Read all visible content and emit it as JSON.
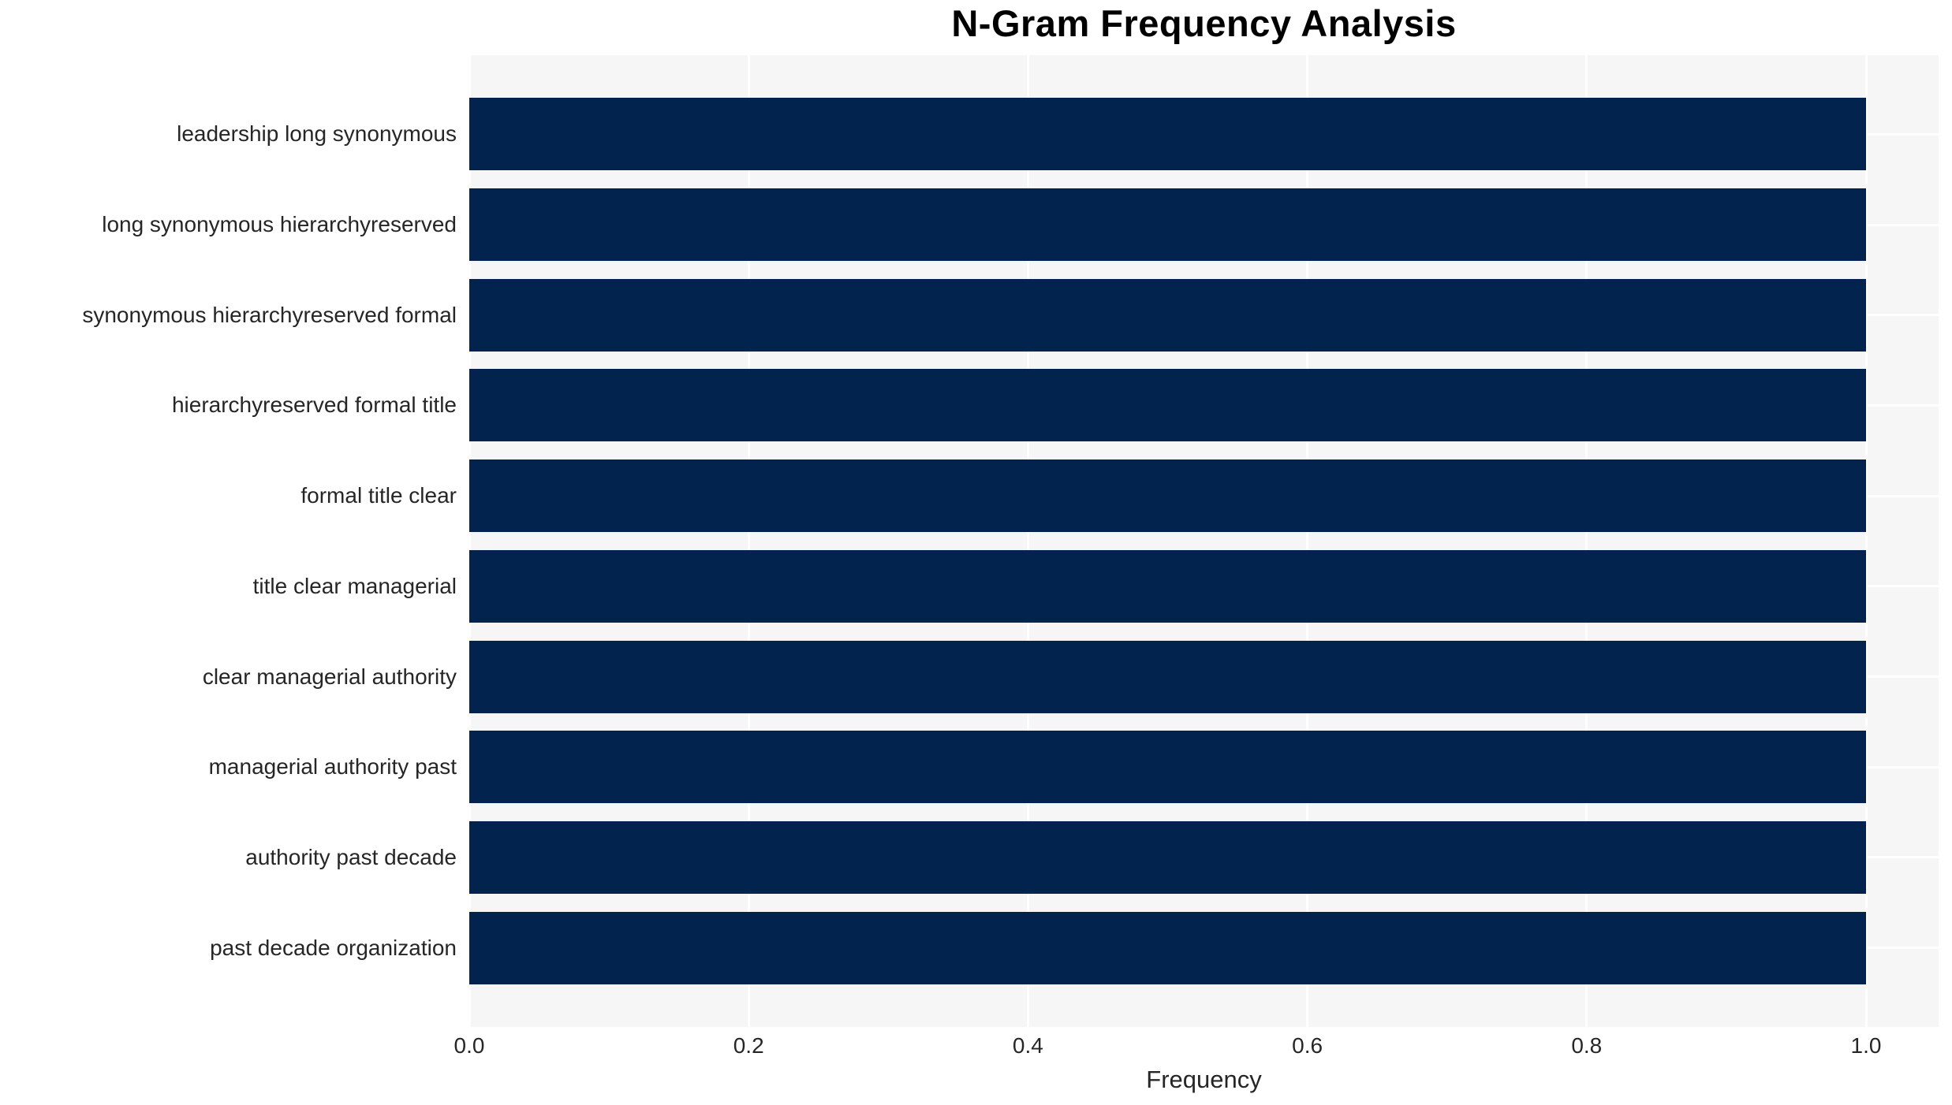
{
  "chart_data": {
    "type": "bar",
    "orientation": "horizontal",
    "title": "N-Gram Frequency Analysis",
    "xlabel": "Frequency",
    "ylabel": "",
    "categories": [
      "leadership long synonymous",
      "long synonymous hierarchyreserved",
      "synonymous hierarchyreserved formal",
      "hierarchyreserved formal title",
      "formal title clear",
      "title clear managerial",
      "clear managerial authority",
      "managerial authority past",
      "authority past decade",
      "past decade organization"
    ],
    "values": [
      1.0,
      1.0,
      1.0,
      1.0,
      1.0,
      1.0,
      1.0,
      1.0,
      1.0,
      1.0
    ],
    "xticks": [
      0.0,
      0.2,
      0.4,
      0.6,
      0.8,
      1.0
    ],
    "xtick_labels": [
      "0.0",
      "0.2",
      "0.4",
      "0.6",
      "0.8",
      "1.0"
    ],
    "xlim": [
      0.0,
      1.052
    ],
    "grid": "on",
    "legend": "none",
    "colors": {
      "bar": "#02234d",
      "plot_background": "#f6f6f7",
      "gridline": "#ffffff",
      "tick_text": "#262626",
      "title_text": "#000000"
    }
  }
}
